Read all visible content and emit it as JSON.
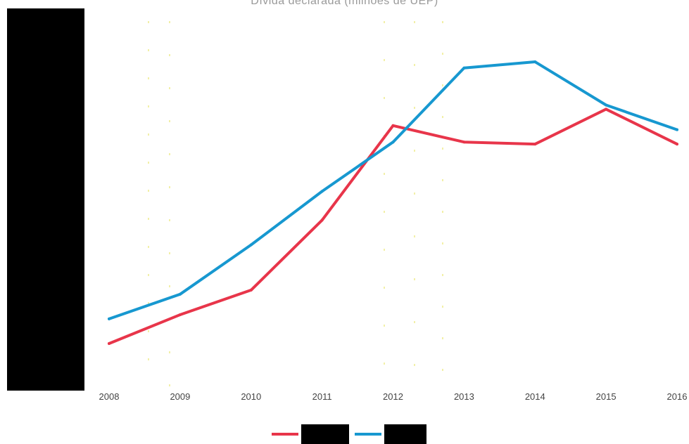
{
  "chart_data": {
    "type": "line",
    "title": "Dívida declarada (milhões de UEP)",
    "x": [
      "2008",
      "2009",
      "2010",
      "2011",
      "2012",
      "2013",
      "2014",
      "2015",
      "2016"
    ],
    "series": [
      {
        "name": "",
        "color": "#e8354a",
        "values": [
          2.0,
          2.7,
          3.3,
          5.0,
          7.3,
          6.9,
          6.85,
          7.7,
          6.85
        ]
      },
      {
        "name": "",
        "color": "#1798d0",
        "values": [
          2.6,
          3.2,
          4.4,
          5.7,
          6.9,
          8.7,
          8.85,
          7.8,
          7.2
        ]
      }
    ],
    "ylim": [
      1.3,
      9.5
    ],
    "grid": false,
    "legend": "bottom",
    "y_axis_redacted": true
  }
}
